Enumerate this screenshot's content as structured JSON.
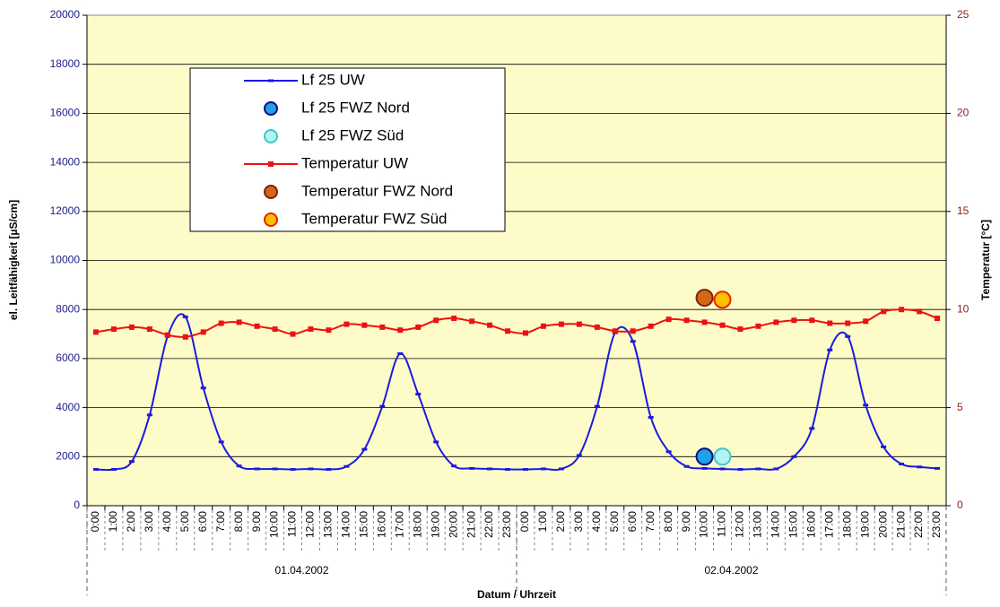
{
  "chart_data": {
    "type": "line",
    "y_label": "el. Leitfähigkeit [µS/cm]",
    "y2_label": "Temperatur [°C]",
    "x_label": "Datum / Uhrzeit",
    "categories": [
      "0:00",
      "1:00",
      "2:00",
      "3:00",
      "4:00",
      "5:00",
      "6:00",
      "7:00",
      "8:00",
      "9:00",
      "10:00",
      "11:00",
      "12:00",
      "13:00",
      "14:00",
      "15:00",
      "16:00",
      "17:00",
      "18:00",
      "19:00",
      "20:00",
      "21:00",
      "22:00",
      "23:00",
      "0:00",
      "1:00",
      "2:00",
      "3:00",
      "4:00",
      "5:00",
      "6:00",
      "7:00",
      "8:00",
      "9:00",
      "10:00",
      "11:00",
      "12:00",
      "13:00",
      "14:00",
      "15:00",
      "16:00",
      "17:00",
      "18:00",
      "19:00",
      "20:00",
      "21:00",
      "22:00",
      "23:00"
    ],
    "groups": [
      "01.04.2002",
      "02.04.2002"
    ],
    "ylim": [
      0,
      20000
    ],
    "yticks": [
      0,
      2000,
      4000,
      6000,
      8000,
      10000,
      12000,
      14000,
      16000,
      18000,
      20000
    ],
    "y2lim": [
      0,
      25
    ],
    "y2ticks": [
      0,
      5,
      10,
      15,
      20,
      25
    ],
    "grid": true,
    "series": [
      {
        "name": "Lf 25 UW",
        "color": "#1a1ae0",
        "marker": "dash",
        "line": true,
        "values": [
          1480,
          1480,
          1800,
          3700,
          6900,
          7700,
          4800,
          2600,
          1620,
          1500,
          1500,
          1480,
          1500,
          1480,
          1600,
          2300,
          4050,
          6200,
          4550,
          2600,
          1620,
          1520,
          1500,
          1480,
          1480,
          1500,
          1500,
          2050,
          4050,
          7050,
          6700,
          3600,
          2200,
          1600,
          1520,
          1500,
          1480,
          1500,
          1500,
          2000,
          3150,
          6350,
          6900,
          4100,
          2400,
          1700,
          1580,
          1520
        ]
      },
      {
        "name": "Lf 25 FWZ Nord",
        "color": "#1fa0e8",
        "edge": "#10107a",
        "marker": "circle",
        "line": false,
        "values": [
          null,
          null,
          null,
          null,
          null,
          null,
          null,
          null,
          null,
          null,
          null,
          null,
          null,
          null,
          null,
          null,
          null,
          null,
          null,
          null,
          null,
          null,
          null,
          null,
          null,
          null,
          null,
          null,
          null,
          null,
          null,
          null,
          null,
          null,
          2000,
          null,
          null,
          null,
          null,
          null,
          null,
          null,
          null,
          null,
          null,
          null,
          null,
          null
        ]
      },
      {
        "name": "Lf 25 FWZ Süd",
        "color": "#b0f4f4",
        "edge": "#40c8c8",
        "marker": "circle",
        "line": false,
        "values": [
          null,
          null,
          null,
          null,
          null,
          null,
          null,
          null,
          null,
          null,
          null,
          null,
          null,
          null,
          null,
          null,
          null,
          null,
          null,
          null,
          null,
          null,
          null,
          null,
          null,
          null,
          null,
          null,
          null,
          null,
          null,
          null,
          null,
          null,
          null,
          2000,
          null,
          null,
          null,
          null,
          null,
          null,
          null,
          null,
          null,
          null,
          null,
          null
        ]
      },
      {
        "name": "Temperatur UW",
        "color": "#ee1111",
        "marker": "square",
        "line": true,
        "axis": "y2",
        "values": [
          8.85,
          9.0,
          9.1,
          9.0,
          8.7,
          8.6,
          8.85,
          9.3,
          9.35,
          9.15,
          9.0,
          8.75,
          9.0,
          8.95,
          9.25,
          9.2,
          9.1,
          8.95,
          9.1,
          9.45,
          9.55,
          9.4,
          9.2,
          8.9,
          8.8,
          9.15,
          9.25,
          9.25,
          9.1,
          8.9,
          8.9,
          9.15,
          9.5,
          9.45,
          9.35,
          9.2,
          9.0,
          9.15,
          9.35,
          9.45,
          9.45,
          9.3,
          9.3,
          9.4,
          9.9,
          10.0,
          9.9,
          9.55
        ]
      },
      {
        "name": "Temperatur FWZ Nord",
        "color": "#d06818",
        "edge": "#802010",
        "marker": "circle",
        "line": false,
        "axis": "y2",
        "values": [
          null,
          null,
          null,
          null,
          null,
          null,
          null,
          null,
          null,
          null,
          null,
          null,
          null,
          null,
          null,
          null,
          null,
          null,
          null,
          null,
          null,
          null,
          null,
          null,
          null,
          null,
          null,
          null,
          null,
          null,
          null,
          null,
          null,
          null,
          10.6,
          null,
          null,
          null,
          null,
          null,
          null,
          null,
          null,
          null,
          null,
          null,
          null,
          null
        ]
      },
      {
        "name": "Temperatur FWZ Süd",
        "color": "#ffc000",
        "edge": "#ee2200",
        "marker": "circle",
        "line": false,
        "axis": "y2",
        "values": [
          null,
          null,
          null,
          null,
          null,
          null,
          null,
          null,
          null,
          null,
          null,
          null,
          null,
          null,
          null,
          null,
          null,
          null,
          null,
          null,
          null,
          null,
          null,
          null,
          null,
          null,
          null,
          null,
          null,
          null,
          null,
          null,
          null,
          null,
          null,
          10.5,
          null,
          null,
          null,
          null,
          null,
          null,
          null,
          null,
          null,
          null,
          null,
          null
        ]
      }
    ]
  }
}
